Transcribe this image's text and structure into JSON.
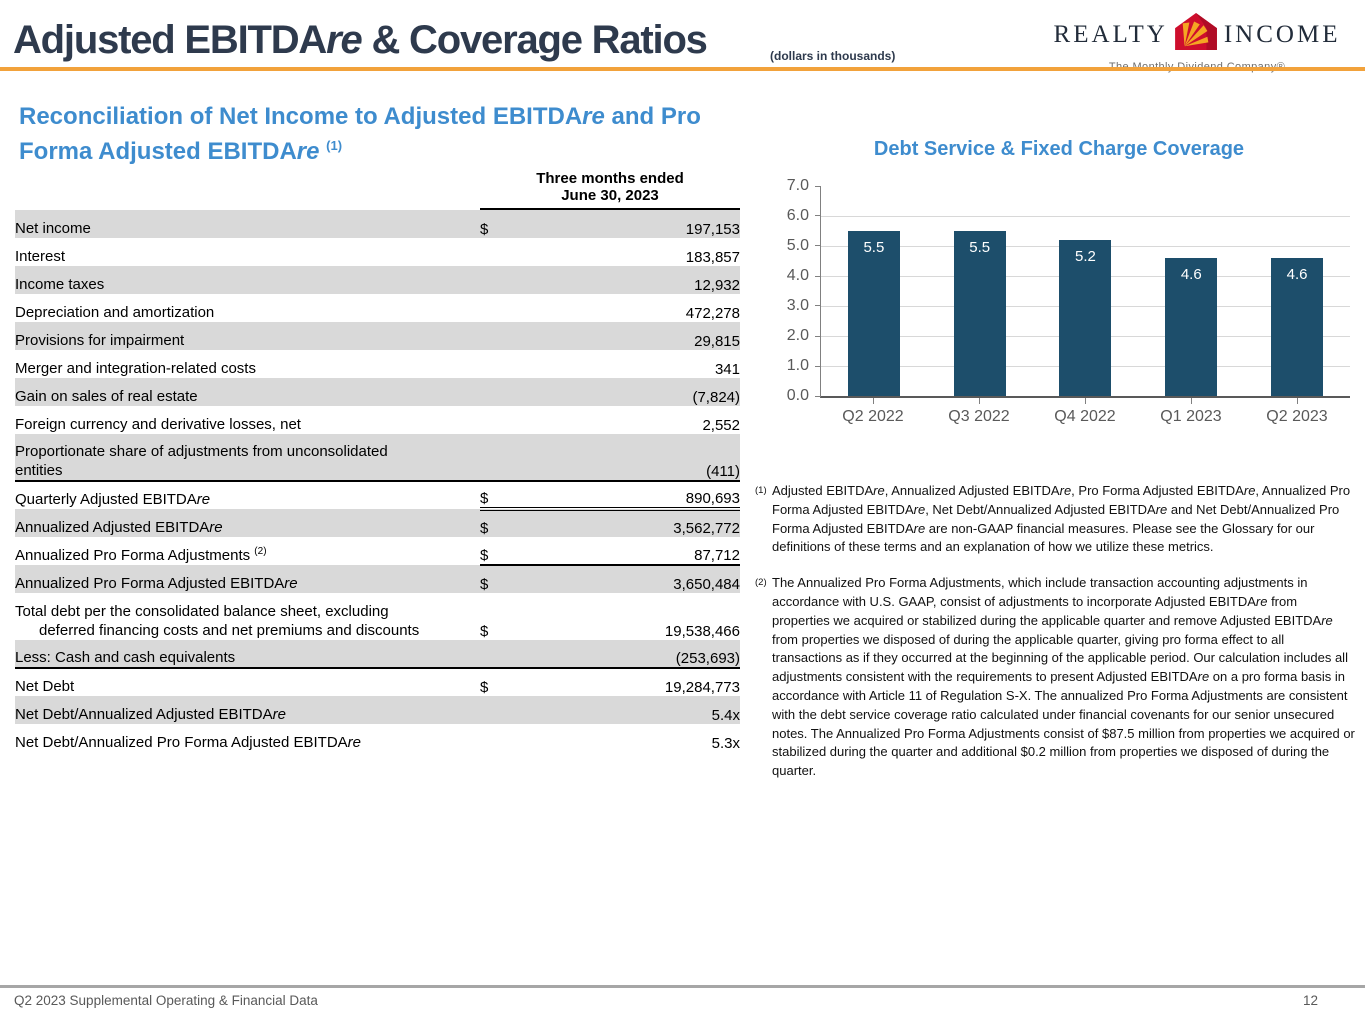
{
  "header": {
    "title": "Adjusted EBITDAre & Coverage Ratios",
    "units_note": "(dollars in thousands)",
    "logo": {
      "brand_left": "REALTY",
      "brand_right": "INCOME",
      "tagline": "The Monthly Dividend Company®",
      "house_red": "#CE0E2D",
      "house_gold": "#F5A623"
    }
  },
  "colors": {
    "accent_orange": "#F2A23B",
    "heading_blue": "#3E8CCE",
    "title_navy": "#2E3A4D",
    "row_shade": "#D9D9D9",
    "bar_blue": "#1D4E6B"
  },
  "left_section": {
    "heading": "Reconciliation of Net Income to Adjusted EBITDAre and Pro Forma Adjusted EBITDAre",
    "heading_sup": "(1)",
    "table": {
      "column_header": [
        "Three months ended",
        "June 30, 2023"
      ],
      "rows": [
        {
          "label": "Net income",
          "dollar": "$",
          "value": "197,153",
          "shaded": true
        },
        {
          "label": "Interest",
          "dollar": "",
          "value": "183,857",
          "shaded": false
        },
        {
          "label": "Income taxes",
          "dollar": "",
          "value": "12,932",
          "shaded": true
        },
        {
          "label": "Depreciation and amortization",
          "dollar": "",
          "value": "472,278",
          "shaded": false
        },
        {
          "label": "Provisions for impairment",
          "dollar": "",
          "value": "29,815",
          "shaded": true
        },
        {
          "label": "Merger and integration-related costs",
          "dollar": "",
          "value": "341",
          "shaded": false
        },
        {
          "label": "Gain on sales of real estate",
          "dollar": "",
          "value": "(7,824)",
          "shaded": true
        },
        {
          "label": "Foreign currency and derivative losses, net",
          "dollar": "",
          "value": "2,552",
          "shaded": false
        },
        {
          "label": "Proportionate share of adjustments from unconsolidated",
          "label2": "entities",
          "indent2": false,
          "dollar": "",
          "value": "(411)",
          "shaded": true,
          "border_bottom": "full"
        },
        {
          "label": "Quarterly Adjusted EBITDAre",
          "dollar": "$",
          "value": "890,693",
          "shaded": false,
          "border_bottom": "double_value"
        },
        {
          "label": "Annualized Adjusted EBITDAre",
          "dollar": "$",
          "value": "3,562,772",
          "shaded": true
        },
        {
          "label": "Annualized Pro Forma Adjustments",
          "sup": "(2)",
          "dollar": "$",
          "value": "87,712",
          "shaded": false,
          "border_bottom": "value"
        },
        {
          "label": "Annualized Pro Forma Adjusted EBITDAre",
          "dollar": "$",
          "value": "3,650,484",
          "shaded": true
        },
        {
          "label": "Total debt per the consolidated balance sheet, excluding",
          "label2": "deferred financing costs and net premiums and discounts",
          "indent2": true,
          "dollar": "$",
          "value": "19,538,466",
          "shaded": false
        },
        {
          "label": "Less: Cash and cash equivalents",
          "dollar": "",
          "value": "(253,693)",
          "shaded": true,
          "border_bottom": "full"
        },
        {
          "label": "Net Debt",
          "dollar": "$",
          "value": "19,284,773",
          "shaded": false
        },
        {
          "label": "Net Debt/Annualized Adjusted EBITDAre",
          "dollar": "",
          "value": "5.4x",
          "shaded": true
        },
        {
          "label": "Net Debt/Annualized Pro Forma Adjusted EBITDAre",
          "dollar": "",
          "value": "5.3x",
          "shaded": false
        }
      ]
    }
  },
  "chart_data": {
    "type": "bar",
    "title": "Debt Service & Fixed Charge Coverage",
    "categories": [
      "Q2 2022",
      "Q3 2022",
      "Q4 2022",
      "Q1 2023",
      "Q2 2023"
    ],
    "values": [
      5.5,
      5.5,
      5.2,
      4.6,
      4.6
    ],
    "value_labels": [
      "5.5",
      "5.5",
      "5.2",
      "4.6",
      "4.6"
    ],
    "xlabel": "",
    "ylabel": "",
    "ylim": [
      0,
      7
    ],
    "yticks": [
      7.0,
      6.0,
      5.0,
      4.0,
      3.0,
      2.0,
      1.0,
      0.0
    ],
    "ytick_labels": [
      "7.0",
      "6.0",
      "5.0",
      "4.0",
      "3.0",
      "2.0",
      "1.0",
      "0.0"
    ],
    "grid": true,
    "legend_position": "none",
    "bar_color": "#1D4E6B",
    "bar_label_color": "#FFFFFF"
  },
  "footnotes": [
    {
      "marker": "(1)",
      "text": "Adjusted EBITDAre, Annualized Adjusted EBITDAre, Pro Forma Adjusted EBITDAre, Annualized Pro Forma Adjusted EBITDAre, Net Debt/Annualized Adjusted EBITDAre and Net Debt/Annualized Pro Forma Adjusted EBITDAre are non-GAAP financial measures. Please see the Glossary for our definitions of these terms and an explanation of how we utilize these metrics."
    },
    {
      "marker": "(2)",
      "text": "The Annualized Pro Forma Adjustments, which include transaction accounting adjustments in accordance with U.S. GAAP, consist of adjustments to incorporate Adjusted EBITDAre from properties we acquired or stabilized during the applicable quarter and remove Adjusted EBITDAre from properties we disposed of during the applicable quarter, giving pro forma effect to all transactions as if they occurred at the beginning of the applicable period. Our calculation includes all adjustments consistent with the requirements to present Adjusted EBITDAre on a pro forma basis in accordance with Article 11 of Regulation S-X. The annualized Pro Forma Adjustments are consistent with the debt service coverage ratio calculated under financial covenants for our senior unsecured notes. The Annualized Pro Forma Adjustments consist of $87.5 million from properties we acquired or stabilized during the quarter and additional $0.2 million from properties we disposed of during the quarter."
    }
  ],
  "footer": {
    "left": "Q2 2023 Supplemental Operating & Financial Data",
    "page_number": "12"
  }
}
